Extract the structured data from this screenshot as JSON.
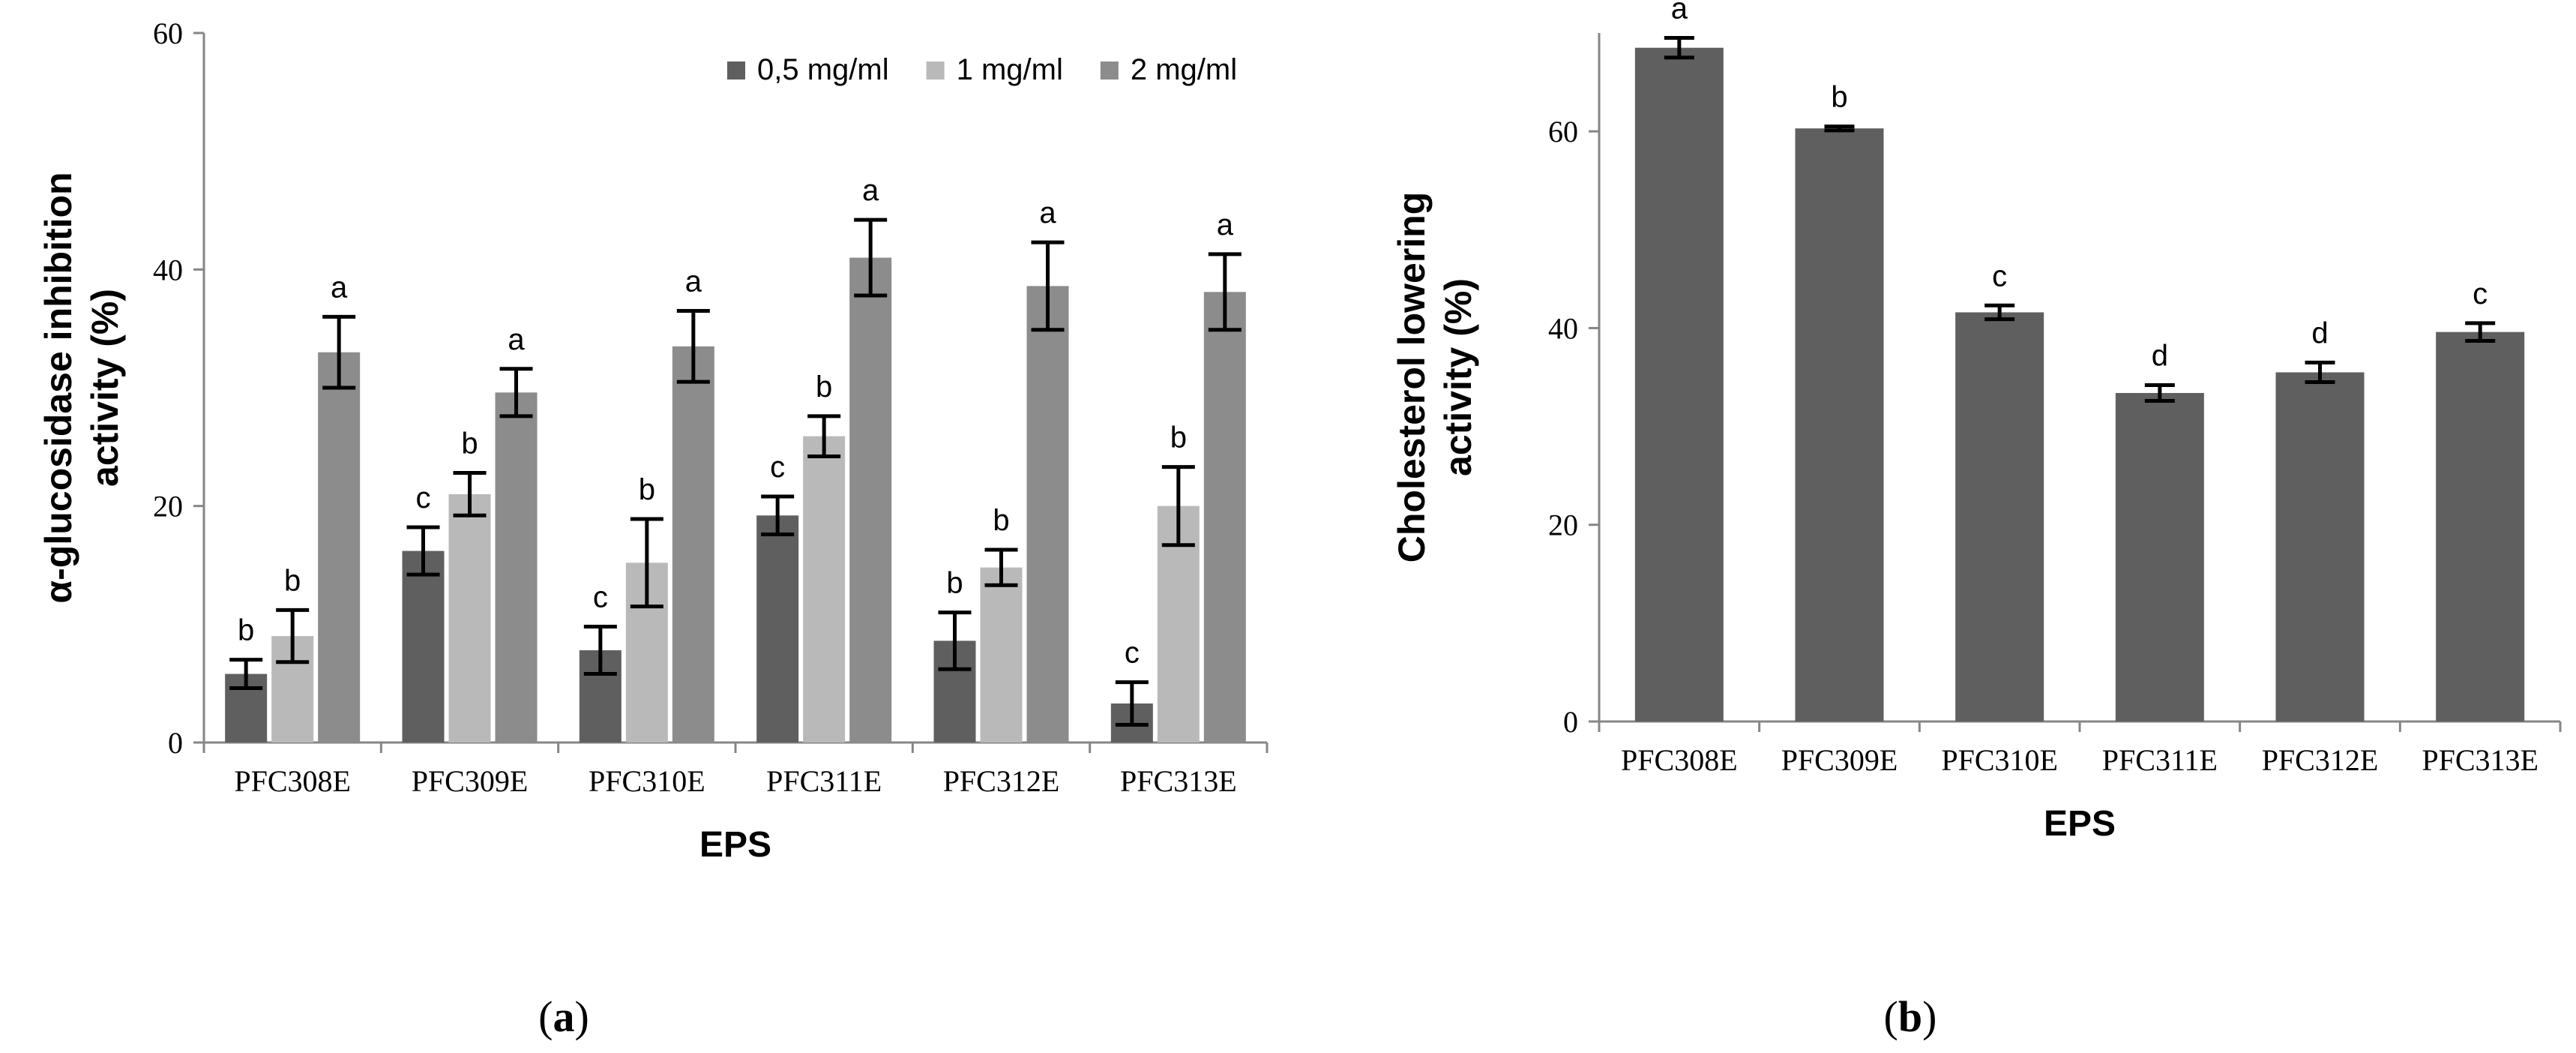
{
  "chart_data": [
    {
      "type": "bar",
      "panel_label": "(a)",
      "title": "",
      "xlabel": "EPS",
      "ylabel": "α-glucosidase inhibition activity (%)",
      "ylabel_lines": [
        "α-glucosidase inhibition",
        "activity (%)"
      ],
      "ylim": [
        0,
        60
      ],
      "yticks": [
        0,
        20,
        40,
        60
      ],
      "grid": false,
      "legend_position": "top-right",
      "categories": [
        "PFC308E",
        "PFC309E",
        "PFC310E",
        "PFC311E",
        "PFC312E",
        "PFC313E"
      ],
      "series": [
        {
          "name": "0,5 mg/ml",
          "color": "#5f5f5f",
          "values": [
            5.8,
            16.2,
            7.8,
            19.2,
            8.6,
            3.3
          ],
          "errors": [
            1.2,
            2.0,
            2.0,
            1.6,
            2.4,
            1.8
          ],
          "letters": [
            "b",
            "c",
            "c",
            "c",
            "b",
            "c"
          ]
        },
        {
          "name": "1 mg/ml",
          "color": "#b9b9b9",
          "values": [
            9.0,
            21.0,
            15.2,
            25.9,
            14.8,
            20.0
          ],
          "errors": [
            2.2,
            1.8,
            3.7,
            1.7,
            1.5,
            3.3
          ],
          "letters": [
            "b",
            "b",
            "b",
            "b",
            "b",
            "b"
          ]
        },
        {
          "name": "2 mg/ml",
          "color": "#8c8c8c",
          "values": [
            33.0,
            29.6,
            33.5,
            41.0,
            38.6,
            38.1
          ],
          "errors": [
            3.0,
            2.0,
            3.0,
            3.2,
            3.7,
            3.2
          ],
          "letters": [
            "a",
            "a",
            "a",
            "a",
            "a",
            "a"
          ]
        }
      ]
    },
    {
      "type": "bar",
      "panel_label": "(b)",
      "title": "",
      "xlabel": "EPS",
      "ylabel": "Cholesterol lowering activity (%)",
      "ylabel_lines": [
        "Cholesterol lowering",
        "activity (%)"
      ],
      "ylim": [
        0,
        70
      ],
      "yticks": [
        0,
        20,
        40,
        60
      ],
      "grid": false,
      "categories": [
        "PFC308E",
        "PFC309E",
        "PFC310E",
        "PFC311E",
        "PFC312E",
        "PFC313E"
      ],
      "series": [
        {
          "name": "Cholesterol lowering activity",
          "color": "#5f5f5f",
          "values": [
            68.5,
            60.3,
            41.6,
            33.4,
            35.5,
            39.6
          ],
          "errors": [
            1.0,
            0.2,
            0.7,
            0.8,
            1.0,
            0.9
          ],
          "letters": [
            "a",
            "b",
            "c",
            "d",
            "d",
            "c"
          ]
        }
      ]
    }
  ]
}
